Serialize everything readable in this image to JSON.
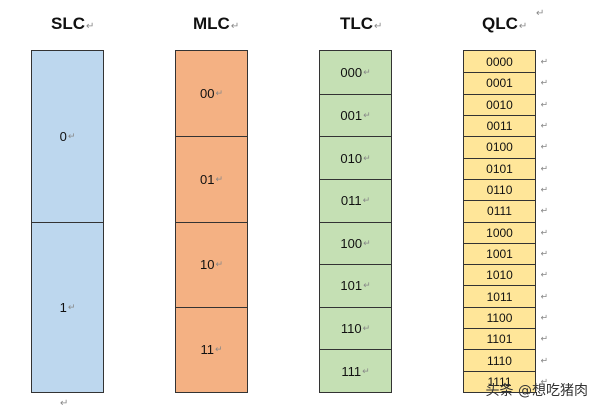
{
  "return_mark": "↵",
  "columns": [
    {
      "title": "SLC",
      "color": "#bdd7ee",
      "cells": [
        "0",
        "1"
      ]
    },
    {
      "title": "MLC",
      "color": "#f4b183",
      "cells": [
        "00",
        "01",
        "10",
        "11"
      ]
    },
    {
      "title": "TLC",
      "color": "#c5e0b4",
      "cells": [
        "000",
        "001",
        "010",
        "011",
        "100",
        "101",
        "110",
        "111"
      ]
    },
    {
      "title": "QLC",
      "color": "#ffe699",
      "cells": [
        "0000",
        "0001",
        "0010",
        "0011",
        "0100",
        "0101",
        "0110",
        "0111",
        "1000",
        "1001",
        "1010",
        "1011",
        "1100",
        "1101",
        "1110",
        "1111"
      ]
    }
  ],
  "watermark": "头条 @想吃猪肉"
}
